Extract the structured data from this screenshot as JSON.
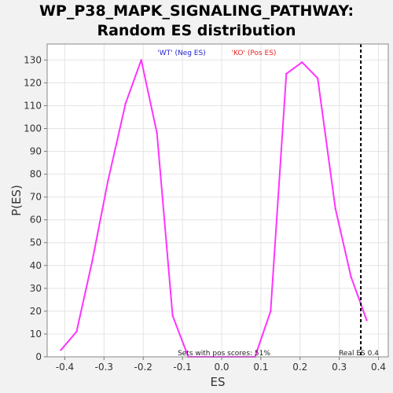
{
  "chart_data": {
    "type": "line",
    "title_line1": "WP_P38_MAPK_SIGNALING_PATHWAY:",
    "title_line2": "Random ES distribution",
    "xlabel": "ES",
    "ylabel": "P(ES)",
    "xlim": [
      -0.445,
      0.425
    ],
    "ylim": [
      0,
      137
    ],
    "x_ticks": [
      -0.4,
      -0.3,
      -0.2,
      -0.1,
      0.0,
      0.1,
      0.2,
      0.3,
      0.4
    ],
    "x_tick_labels": [
      "-0.4",
      "-0.3",
      "-0.2",
      "-0.1",
      "0.0",
      "0.1",
      "0.2",
      "0.3",
      "0.4"
    ],
    "y_ticks": [
      0,
      10,
      20,
      30,
      40,
      50,
      60,
      70,
      80,
      90,
      100,
      110,
      120,
      130
    ],
    "grid": true,
    "series": [
      {
        "color": "#ff33ff",
        "x": [
          -0.41,
          -0.37,
          -0.33,
          -0.29,
          -0.245,
          -0.205,
          -0.165,
          -0.125,
          -0.085,
          0.085,
          0.125,
          0.165,
          0.205,
          0.245,
          0.29,
          0.33,
          0.37
        ],
        "y": [
          3,
          11,
          42,
          77,
          111,
          130,
          98,
          18,
          0,
          0,
          20,
          124,
          129,
          122,
          65,
          35,
          16
        ]
      }
    ],
    "real_es": 0.355,
    "real_es_label": "Real ES 0.4",
    "legend_neg": "'WT' (Neg ES)",
    "legend_pos": "'KO' (Pos ES)",
    "legend_neg_color": "#2222cc",
    "legend_pos_color": "#ee2222",
    "pos_scores_note": "Sets with pos scores: 51%"
  }
}
